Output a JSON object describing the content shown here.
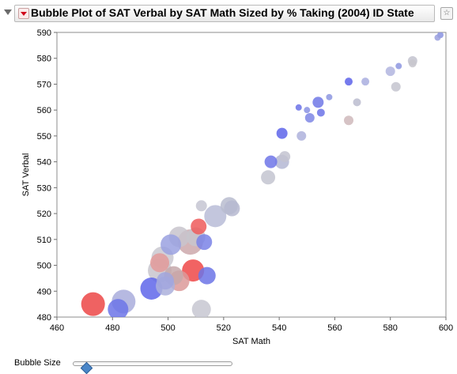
{
  "header": {
    "title": "Bubble Plot of SAT Verbal by SAT Math Sized by % Taking (2004) ID State",
    "disclosure_icon": "triangle-down",
    "menu_icon": "red-triangle-menu",
    "corner_icon": "star-box"
  },
  "controls": {
    "bubble_size_label": "Bubble Size",
    "bubble_size_level": 0.08
  },
  "chart_data": {
    "type": "scatter",
    "title": "",
    "xlabel": "SAT Math",
    "ylabel": "SAT Verbal",
    "xlim": [
      460,
      600
    ],
    "ylim": [
      480,
      590
    ],
    "xticks": [
      460,
      480,
      500,
      520,
      540,
      560,
      580,
      600
    ],
    "yticks": [
      480,
      490,
      500,
      510,
      520,
      530,
      540,
      550,
      560,
      570,
      580,
      590
    ],
    "grid": false,
    "points": [
      {
        "x": 598,
        "y": 589,
        "size": 4,
        "color": "#8a93e0"
      },
      {
        "x": 597,
        "y": 588,
        "size": 4,
        "color": "#9aa0de"
      },
      {
        "x": 588,
        "y": 579,
        "size": 6,
        "color": "#c3c3cf"
      },
      {
        "x": 588,
        "y": 578,
        "size": 5,
        "color": "#c7c5cd"
      },
      {
        "x": 583,
        "y": 577,
        "size": 4,
        "color": "#8d96e1"
      },
      {
        "x": 580,
        "y": 575,
        "size": 6,
        "color": "#b1b5df"
      },
      {
        "x": 582,
        "y": 569,
        "size": 6,
        "color": "#c4c4cf"
      },
      {
        "x": 571,
        "y": 571,
        "size": 5,
        "color": "#a9aedf"
      },
      {
        "x": 565,
        "y": 571,
        "size": 5,
        "color": "#5d63ea"
      },
      {
        "x": 568,
        "y": 563,
        "size": 5,
        "color": "#bbbccf"
      },
      {
        "x": 558,
        "y": 565,
        "size": 4,
        "color": "#8d96e1"
      },
      {
        "x": 554,
        "y": 563,
        "size": 7,
        "color": "#7078e6"
      },
      {
        "x": 547,
        "y": 561,
        "size": 4,
        "color": "#6b72e8"
      },
      {
        "x": 550,
        "y": 560,
        "size": 4,
        "color": "#8a92e3"
      },
      {
        "x": 555,
        "y": 559,
        "size": 5,
        "color": "#6c73e8"
      },
      {
        "x": 551,
        "y": 557,
        "size": 6,
        "color": "#7e86e5"
      },
      {
        "x": 565,
        "y": 556,
        "size": 6,
        "color": "#cfb9bb"
      },
      {
        "x": 541,
        "y": 551,
        "size": 7,
        "color": "#5e65ea"
      },
      {
        "x": 548,
        "y": 550,
        "size": 6,
        "color": "#aeb2dc"
      },
      {
        "x": 542,
        "y": 542,
        "size": 7,
        "color": "#c3c3d0"
      },
      {
        "x": 541,
        "y": 540,
        "size": 9,
        "color": "#b4b7d4"
      },
      {
        "x": 537,
        "y": 540,
        "size": 8,
        "color": "#6e75e7"
      },
      {
        "x": 536,
        "y": 534,
        "size": 9,
        "color": "#c3c4d0"
      },
      {
        "x": 522,
        "y": 523,
        "size": 11,
        "color": "#b9bccf"
      },
      {
        "x": 523,
        "y": 522,
        "size": 10,
        "color": "#b6b8d0"
      },
      {
        "x": 512,
        "y": 523,
        "size": 7,
        "color": "#c6c6d2"
      },
      {
        "x": 517,
        "y": 519,
        "size": 14,
        "color": "#b9bcd7"
      },
      {
        "x": 511,
        "y": 515,
        "size": 10,
        "color": "#ee5a5a"
      },
      {
        "x": 504,
        "y": 511,
        "size": 13,
        "color": "#c8c4cc"
      },
      {
        "x": 508,
        "y": 509,
        "size": 16,
        "color": "#cda8ab"
      },
      {
        "x": 510,
        "y": 511,
        "size": 12,
        "color": "#c7c5cc"
      },
      {
        "x": 513,
        "y": 509,
        "size": 10,
        "color": "#7a83e6"
      },
      {
        "x": 501,
        "y": 508,
        "size": 13,
        "color": "#9aa1e0"
      },
      {
        "x": 498,
        "y": 503,
        "size": 14,
        "color": "#c9c8d0"
      },
      {
        "x": 497,
        "y": 501,
        "size": 12,
        "color": "#e39a9a"
      },
      {
        "x": 497,
        "y": 498,
        "size": 15,
        "color": "#c8c6ce"
      },
      {
        "x": 502,
        "y": 496,
        "size": 12,
        "color": "#c6a8aa"
      },
      {
        "x": 509,
        "y": 498,
        "size": 14,
        "color": "#ee4848"
      },
      {
        "x": 514,
        "y": 496,
        "size": 11,
        "color": "#6c74e6"
      },
      {
        "x": 499,
        "y": 494,
        "size": 11,
        "color": "#a1a6de"
      },
      {
        "x": 504,
        "y": 494,
        "size": 13,
        "color": "#dc9999"
      },
      {
        "x": 499,
        "y": 492,
        "size": 12,
        "color": "#abb0dc"
      },
      {
        "x": 494,
        "y": 491,
        "size": 14,
        "color": "#5f66ea"
      },
      {
        "x": 484,
        "y": 486,
        "size": 15,
        "color": "#a9addc"
      },
      {
        "x": 482,
        "y": 483,
        "size": 13,
        "color": "#6c74e8"
      },
      {
        "x": 473,
        "y": 485,
        "size": 15,
        "color": "#ec4646"
      },
      {
        "x": 512,
        "y": 483,
        "size": 12,
        "color": "#c7c7d1"
      }
    ]
  }
}
